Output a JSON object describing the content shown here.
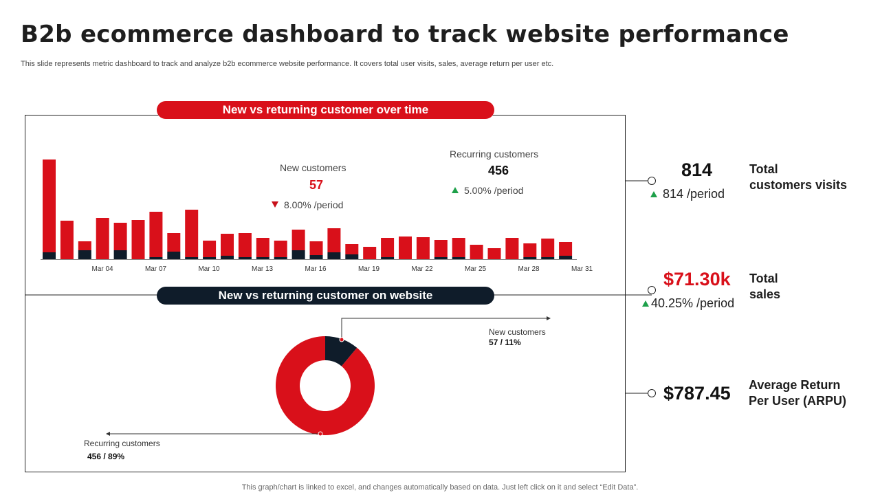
{
  "header": {
    "title": "B2b ecommerce dashboard to track website performance",
    "subtitle": "This slide represents metric dashboard to track and analyze  b2b ecommerce website performance. It covers total user visits, sales, average return per user etc."
  },
  "bar_panel": {
    "title": "New vs returning customer over time",
    "new_customers": {
      "label": "New customers",
      "value": "57",
      "change": "8.00% /period",
      "direction": "down"
    },
    "recurring_customers": {
      "label": "Recurring customers",
      "value": "456",
      "change": "5.00% /period",
      "direction": "up"
    }
  },
  "donut_panel": {
    "title": "New vs returning customer on website",
    "new_label": "New customers",
    "new_value": "57 / 11%",
    "recurring_label": "Recurring  customers",
    "recurring_value": "456 / 89%"
  },
  "kpis": [
    {
      "value": "814",
      "sub": "814 /period",
      "label_line1": "Total",
      "label_line2": "customers visits",
      "value_color": "#111111"
    },
    {
      "value": "$71.30k",
      "sub": "40.25% /period",
      "label_line1": "Total",
      "label_line2": "sales",
      "value_color": "#d9101a"
    },
    {
      "value": "$787.45",
      "sub": "",
      "label_line1": "Average Return",
      "label_line2": "Per User (ARPU)",
      "value_color": "#111111"
    }
  ],
  "colors": {
    "red": "#d9101a",
    "dark": "#0f1c2a",
    "up": "#1ea04a"
  },
  "footer": "This graph/chart is linked to excel,  and changes automatically based on data. Just left click on it and select “Edit Data”.",
  "chart_data": [
    {
      "type": "bar",
      "stacked": true,
      "x_tick_labels": [
        "Mar 04",
        "Mar 07",
        "Mar 10",
        "Mar 13",
        "Mar 16",
        "Mar 19",
        "Mar 22",
        "Mar 25",
        "Mar 28",
        "Mar 31"
      ],
      "series": [
        {
          "color": "#0f1c2a",
          "values": [
            10,
            0,
            13,
            0,
            13,
            0,
            3,
            11,
            3,
            3,
            5,
            3,
            3,
            3,
            13,
            6,
            10,
            7,
            0,
            3,
            0,
            0,
            3,
            3,
            0,
            0,
            0,
            3,
            3,
            5
          ]
        },
        {
          "color": "#d9101a",
          "values": [
            135,
            56,
            13,
            60,
            40,
            57,
            66,
            27,
            69,
            24,
            32,
            35,
            28,
            24,
            30,
            20,
            35,
            15,
            18,
            28,
            33,
            32,
            25,
            28,
            21,
            16,
            31,
            20,
            27,
            20
          ]
        }
      ]
    },
    {
      "type": "pie",
      "donut": true,
      "labels": [
        "New customers",
        "Recurring  customers"
      ],
      "values": [
        57,
        456
      ],
      "colors": [
        "#0f1c2a",
        "#d9101a"
      ]
    }
  ]
}
